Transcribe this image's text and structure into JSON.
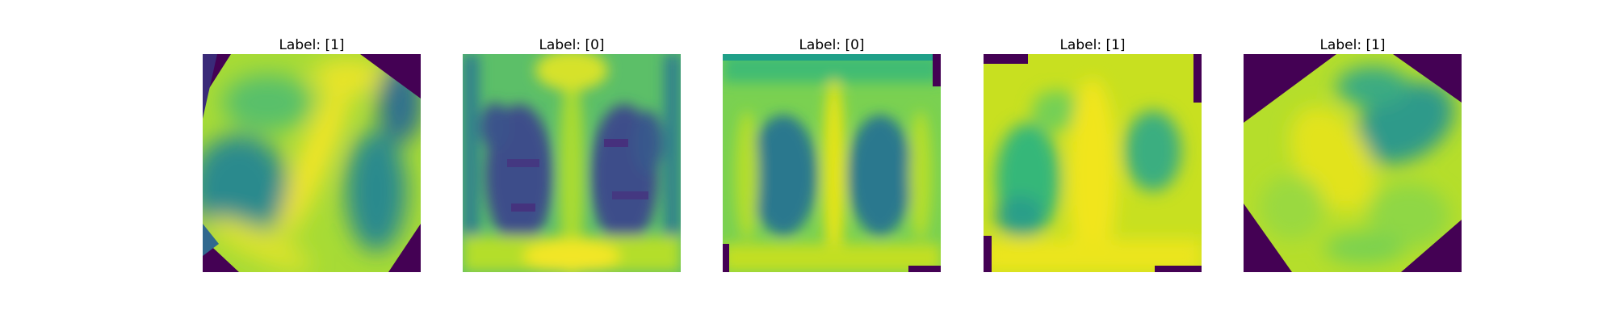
{
  "panels": [
    {
      "title": "Label: [1]",
      "label": 1,
      "image": "rotated chest x-ray thumbnail, swirling band pattern"
    },
    {
      "title": "Label: [0]",
      "label": 0,
      "image": "chest x-ray thumbnail, dark lungs"
    },
    {
      "title": "Label: [0]",
      "label": 0,
      "image": "chest x-ray thumbnail, clear lungs with bright spine"
    },
    {
      "title": "Label: [1]",
      "label": 1,
      "image": "chest x-ray thumbnail, bright hazy lungs"
    },
    {
      "title": "Label: [1]",
      "label": 1,
      "image": "rotated bright chest x-ray thumbnail with dark corners"
    }
  ],
  "colors": {
    "background": "#ffffff",
    "cmap_low": "#440154",
    "cmap_mid": "#21918c",
    "cmap_high": "#fde725"
  }
}
